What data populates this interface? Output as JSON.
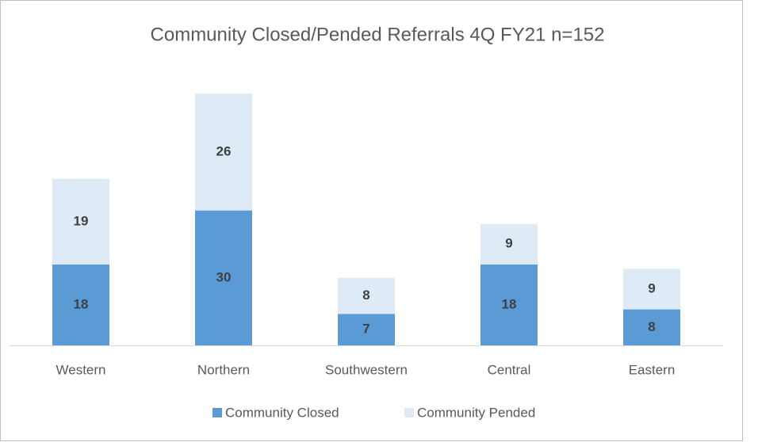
{
  "chart_data": {
    "type": "bar",
    "stacked": true,
    "title": "Community Closed/Pended Referrals   4Q FY21 n=152",
    "categories": [
      "Western",
      "Northern",
      "Southwestern",
      "Central",
      "Eastern"
    ],
    "series": [
      {
        "name": "Community Closed",
        "color": "#5b9bd5",
        "values": [
          18,
          30,
          7,
          18,
          8
        ]
      },
      {
        "name": "Community Pended",
        "color": "#deebf7",
        "values": [
          19,
          26,
          8,
          9,
          9
        ]
      }
    ],
    "legend": "bottom"
  }
}
